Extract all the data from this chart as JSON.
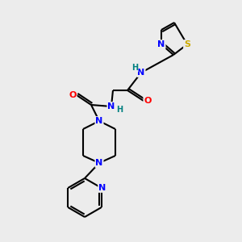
{
  "bg_color": "#ececec",
  "atom_colors": {
    "N": "#0000ff",
    "O": "#ff0000",
    "S": "#ccaa00",
    "C": "#000000",
    "H_label": "#008080"
  },
  "bond_color": "#000000",
  "font_size": 8,
  "line_width": 1.5
}
